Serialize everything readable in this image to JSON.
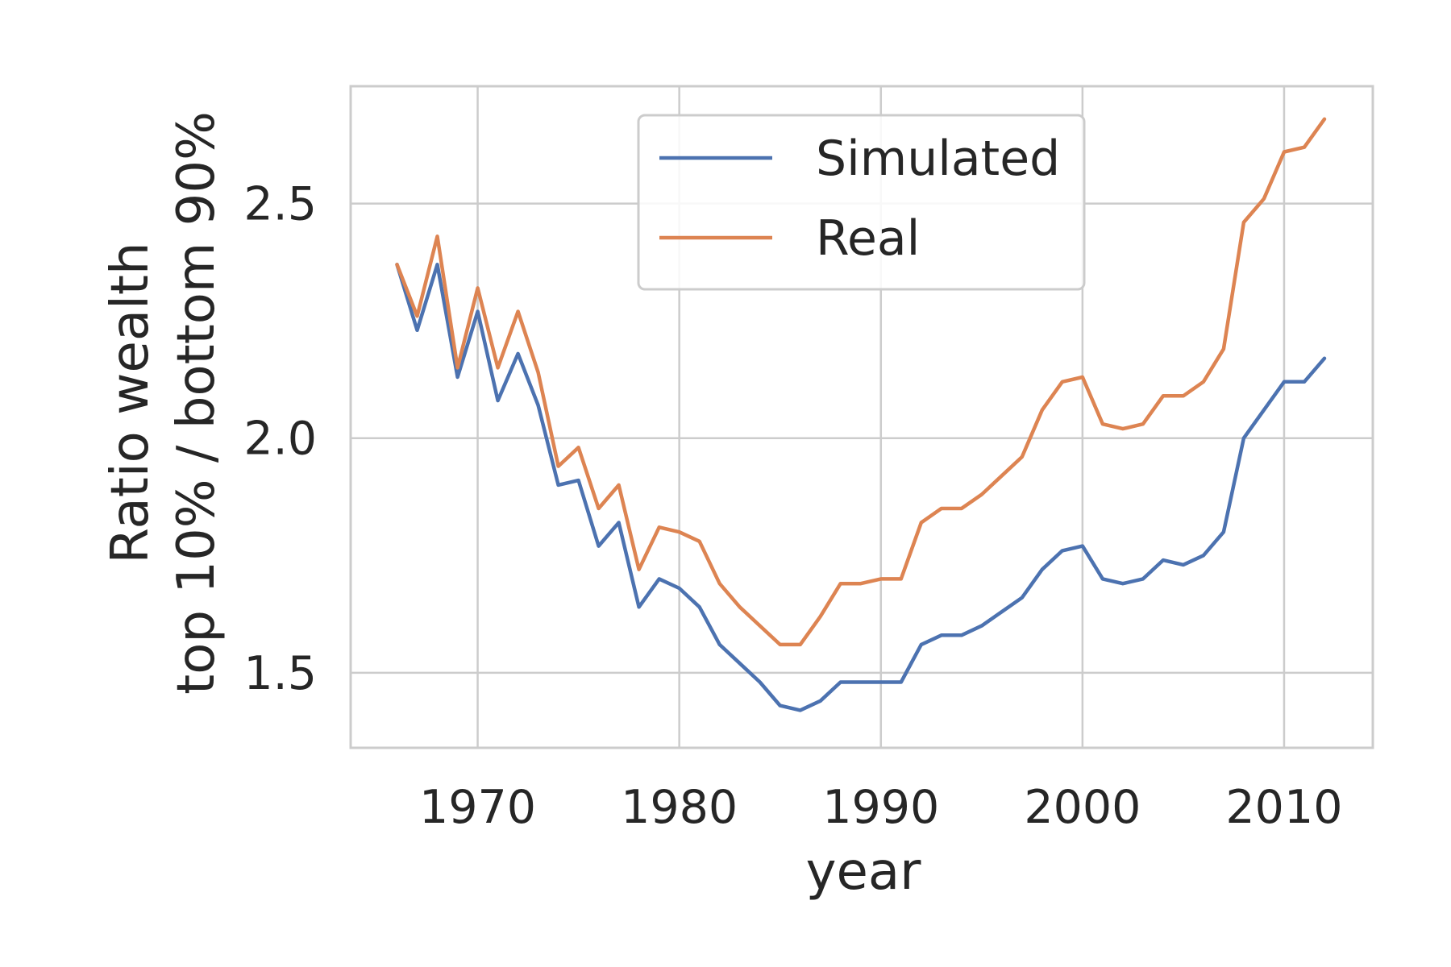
{
  "chart_data": {
    "type": "line",
    "title": "",
    "xlabel": "year",
    "ylabel_lines": [
      "Ratio wealth",
      "top 10% / bottom 90%"
    ],
    "xlim": [
      1963.7,
      2014.4
    ],
    "ylim": [
      1.34,
      2.75
    ],
    "xticks": [
      1970,
      1980,
      1990,
      2000,
      2010
    ],
    "yticks": [
      1.5,
      2.0,
      2.5
    ],
    "grid": true,
    "legend_position": "upper-center",
    "x": [
      1966,
      1967,
      1968,
      1969,
      1970,
      1971,
      1972,
      1973,
      1974,
      1975,
      1976,
      1977,
      1978,
      1979,
      1980,
      1981,
      1982,
      1983,
      1984,
      1985,
      1986,
      1987,
      1988,
      1989,
      1990,
      1991,
      1992,
      1993,
      1994,
      1995,
      1996,
      1997,
      1998,
      1999,
      2000,
      2001,
      2002,
      2003,
      2004,
      2005,
      2006,
      2007,
      2008,
      2009,
      2010,
      2011,
      2012
    ],
    "series": [
      {
        "name": "Simulated",
        "color": "#4c72b0",
        "values": [
          2.37,
          2.23,
          2.37,
          2.13,
          2.27,
          2.08,
          2.18,
          2.07,
          1.9,
          1.91,
          1.77,
          1.82,
          1.64,
          1.7,
          1.68,
          1.64,
          1.56,
          1.52,
          1.48,
          1.43,
          1.42,
          1.44,
          1.48,
          1.48,
          1.48,
          1.48,
          1.56,
          1.58,
          1.58,
          1.6,
          1.63,
          1.66,
          1.72,
          1.76,
          1.77,
          1.7,
          1.69,
          1.7,
          1.74,
          1.73,
          1.75,
          1.8,
          2.0,
          2.06,
          2.12,
          2.12,
          2.17
        ]
      },
      {
        "name": "Real",
        "color": "#dd8452",
        "values": [
          2.37,
          2.26,
          2.43,
          2.15,
          2.32,
          2.15,
          2.27,
          2.14,
          1.94,
          1.98,
          1.85,
          1.9,
          1.72,
          1.81,
          1.8,
          1.78,
          1.69,
          1.64,
          1.6,
          1.56,
          1.56,
          1.62,
          1.69,
          1.69,
          1.7,
          1.7,
          1.82,
          1.85,
          1.85,
          1.88,
          1.92,
          1.96,
          2.06,
          2.12,
          2.13,
          2.03,
          2.02,
          2.03,
          2.09,
          2.09,
          2.12,
          2.19,
          2.46,
          2.51,
          2.61,
          2.62,
          2.68
        ]
      }
    ]
  }
}
